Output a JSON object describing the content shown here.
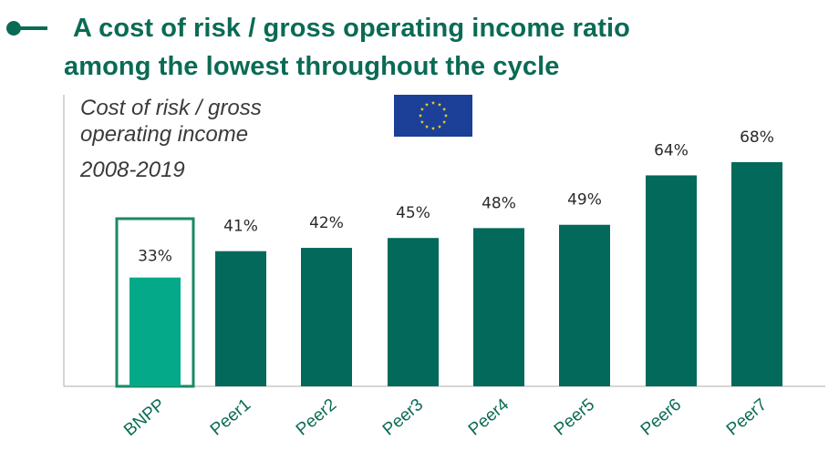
{
  "header": {
    "title_line1": "A cost of risk / gross operating income ratio",
    "title_line2": "among the lowest throughout the cycle"
  },
  "chart_data": {
    "type": "bar",
    "title": "Cost of risk / gross operating income",
    "period": "2008-2019",
    "categories": [
      "BNPP",
      "Peer1",
      "Peer2",
      "Peer3",
      "Peer4",
      "Peer5",
      "Peer6",
      "Peer7"
    ],
    "values": [
      33,
      41,
      42,
      45,
      48,
      49,
      64,
      68
    ],
    "value_labels": [
      "33%",
      "41%",
      "42%",
      "45%",
      "48%",
      "49%",
      "64%",
      "68%"
    ],
    "highlight": "BNPP",
    "ylim": [
      0,
      75
    ],
    "grid": false,
    "legend": "none",
    "colors": {
      "accent": "#0a6b55",
      "bar": "#03695a",
      "highlight_bar": "#04a98a",
      "highlight_outline": "#1a8a62",
      "flag_blue": "#1c3f98",
      "flag_stars": "#f5d41a"
    }
  },
  "icons": {
    "bullet": "bullet-dash-icon",
    "flag": "eu-flag-icon"
  }
}
